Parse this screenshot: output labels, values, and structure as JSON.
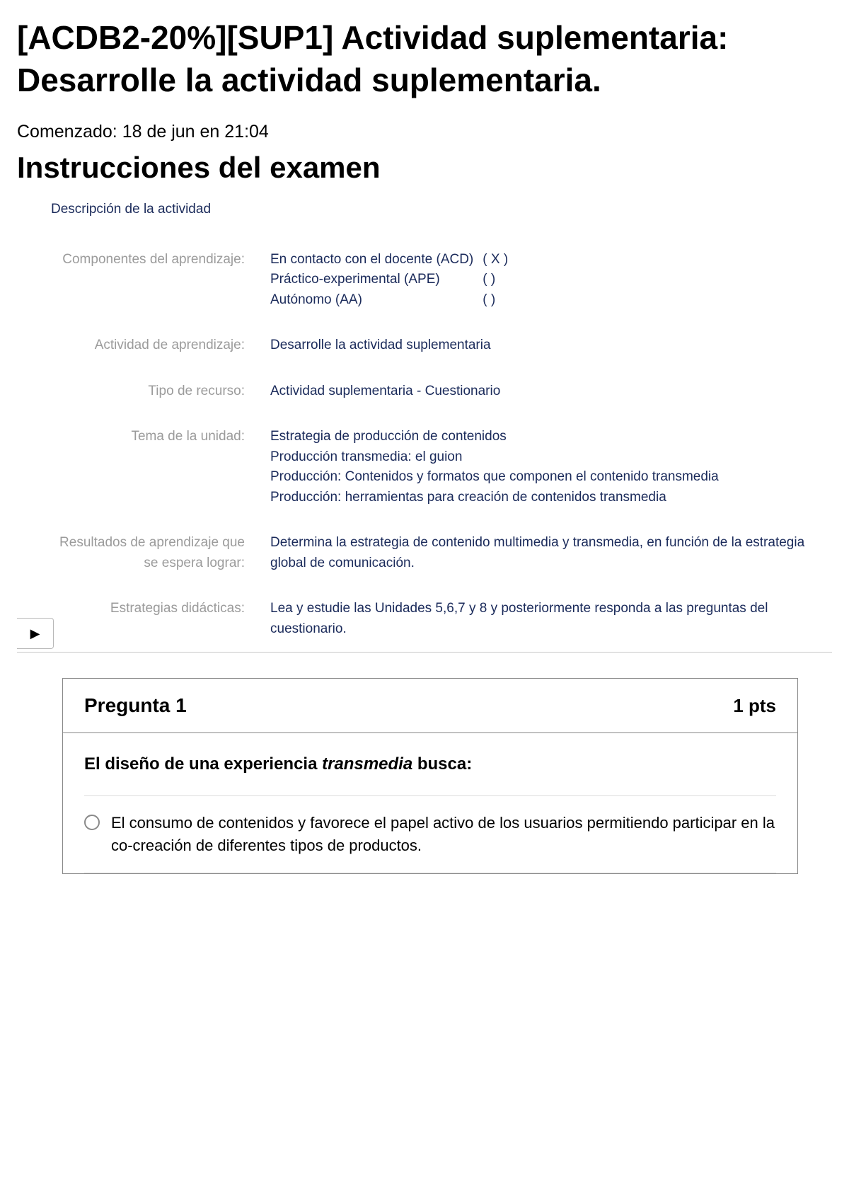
{
  "title": "[ACDB2-20%][SUP1] Actividad suplementaria: Desarrolle la actividad suplementaria.",
  "started": "Comenzado: 18 de jun en 21:04",
  "instructions_heading": "Instrucciones del examen",
  "description_heading": "Descripción de la actividad",
  "colors": {
    "label_gray": "#9b9b9b",
    "value_navy": "#1a2a5a",
    "border_gray": "#888888",
    "divider": "#c7c7c7"
  },
  "info_rows": {
    "componentes": {
      "label": "Componentes del aprendizaje:",
      "items": [
        {
          "name": "En contacto con el docente (ACD)",
          "mark": "(  X  )"
        },
        {
          "name": "Práctico-experimental (APE)",
          "mark": "(       )"
        },
        {
          "name": "Autónomo (AA)",
          "mark": "(       )"
        }
      ]
    },
    "actividad": {
      "label": "Actividad de aprendizaje:",
      "value": "Desarrolle la actividad suplementaria"
    },
    "tipo": {
      "label": "Tipo de recurso:",
      "value": "Actividad suplementaria - Cuestionario"
    },
    "tema": {
      "label": "Tema de la unidad:",
      "lines": [
        "Estrategia de producción de contenidos",
        "Producción transmedia: el guion",
        "Producción: Contenidos y formatos que componen el contenido transmedia",
        "Producción: herramientas para creación de contenidos transmedia"
      ]
    },
    "resultados": {
      "label": "Resultados de aprendizaje que se espera lograr:",
      "value": "Determina la estrategia de contenido multimedia y transmedia, en función de la estrategia global de comunicación."
    },
    "estrategias": {
      "label": "Estrategias didácticas:",
      "value": "Lea y estudie las Unidades 5,6,7 y 8 y posteriormente responda a las preguntas del cuestionario."
    }
  },
  "expand_btn_glyph": "▶",
  "question": {
    "number_label": "Pregunta 1",
    "points_label": "1 pts",
    "stem_pre": "El diseño de una experiencia ",
    "stem_italic": "transmedia",
    "stem_post": " busca:",
    "answers": [
      "El consumo de contenidos y favorece el papel activo de los usuarios permitiendo participar en la co-creación de diferentes tipos de productos."
    ]
  }
}
